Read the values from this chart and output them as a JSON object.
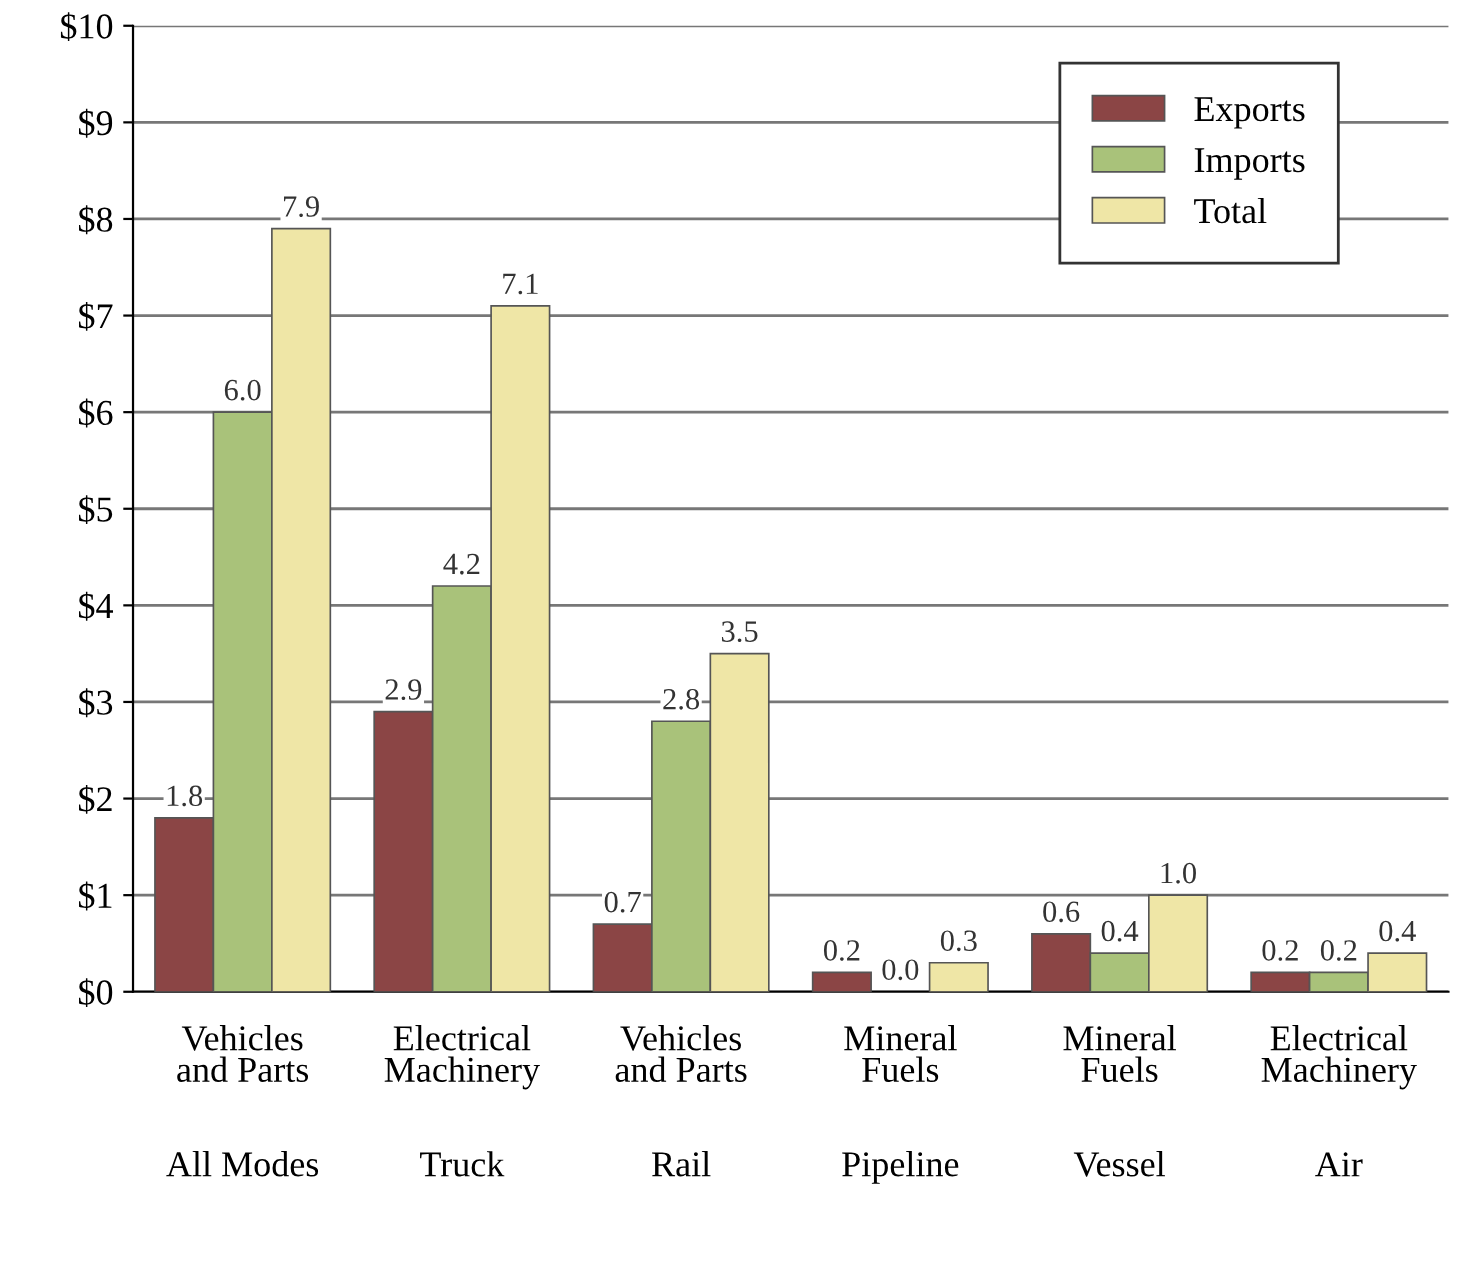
{
  "chart_data": {
    "type": "bar",
    "categories": [
      "Vehicles\nand Parts\n\n\nAll Modes",
      "Electrical\nMachinery\n\n\nTruck",
      "Vehicles\nand Parts\n\n\nRail",
      "Mineral\nFuels\n\n\nPipeline",
      "Mineral\nFuels\n\n\nVessel",
      "Electrical\nMachinery\n\n\nAir"
    ],
    "series": [
      {
        "name": "Exports",
        "color": "#8b4545",
        "values": [
          1.8,
          2.9,
          0.7,
          0.2,
          0.6,
          0.2
        ],
        "value_labels": [
          "1.8",
          "2.9",
          "0.7",
          "0.2",
          "0.6",
          "0.2"
        ]
      },
      {
        "name": "Imports",
        "color": "#a9c27a",
        "values": [
          6.0,
          4.2,
          2.8,
          0.0,
          0.4,
          0.2
        ],
        "value_labels": [
          "6.0",
          "4.2",
          "2.8",
          "0.0",
          "0.4",
          "0.2"
        ]
      },
      {
        "name": "Total",
        "color": "#efe6a6",
        "values": [
          7.9,
          7.1,
          3.5,
          0.3,
          1.0,
          0.4
        ],
        "value_labels": [
          "7.9",
          "7.1",
          "3.5",
          "0.3",
          "1.0",
          "0.4"
        ]
      }
    ],
    "ylim": [
      0,
      10
    ],
    "yticks": [
      {
        "value": 0,
        "label": "$0"
      },
      {
        "value": 1,
        "label": "$1"
      },
      {
        "value": 2,
        "label": "$2"
      },
      {
        "value": 3,
        "label": "$3"
      },
      {
        "value": 4,
        "label": "$4"
      },
      {
        "value": 5,
        "label": "$5"
      },
      {
        "value": 6,
        "label": "$6"
      },
      {
        "value": 7,
        "label": "$7"
      },
      {
        "value": 8,
        "label": "$8"
      },
      {
        "value": 9,
        "label": "$9"
      },
      {
        "value": 10,
        "label": "$10"
      }
    ],
    "grid": "y",
    "legend": "top right"
  }
}
